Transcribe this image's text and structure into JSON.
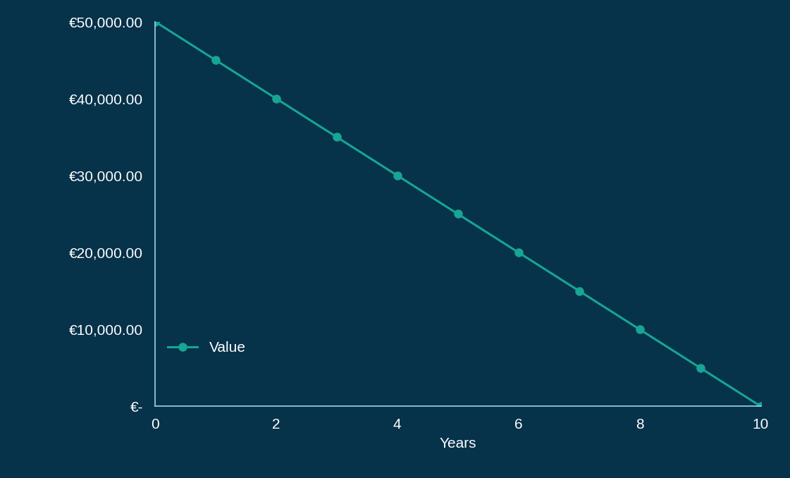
{
  "chart_data": {
    "type": "line",
    "x_label": "Years",
    "x": [
      0,
      1,
      2,
      3,
      4,
      5,
      6,
      7,
      8,
      9,
      10
    ],
    "series": [
      {
        "name": "Value",
        "color": "#17a594",
        "marker": "o",
        "line_style": "solid",
        "values": [
          50000,
          45000,
          40000,
          35000,
          30000,
          25000,
          20000,
          15000,
          10000,
          5000,
          0
        ]
      }
    ],
    "xlim": [
      0,
      10
    ],
    "xticks": [
      0,
      2,
      4,
      6,
      8,
      10
    ],
    "ylim": [
      0,
      50000
    ],
    "yticks": [
      {
        "value": 0,
        "label": "€-"
      },
      {
        "value": 10000,
        "label": "€10,000.00"
      },
      {
        "value": 20000,
        "label": "€20,000.00"
      },
      {
        "value": 30000,
        "label": "€30,000.00"
      },
      {
        "value": 40000,
        "label": "€40,000.00"
      },
      {
        "value": 50000,
        "label": "€50,000.00"
      }
    ],
    "grid": false,
    "legend": "lower left"
  }
}
